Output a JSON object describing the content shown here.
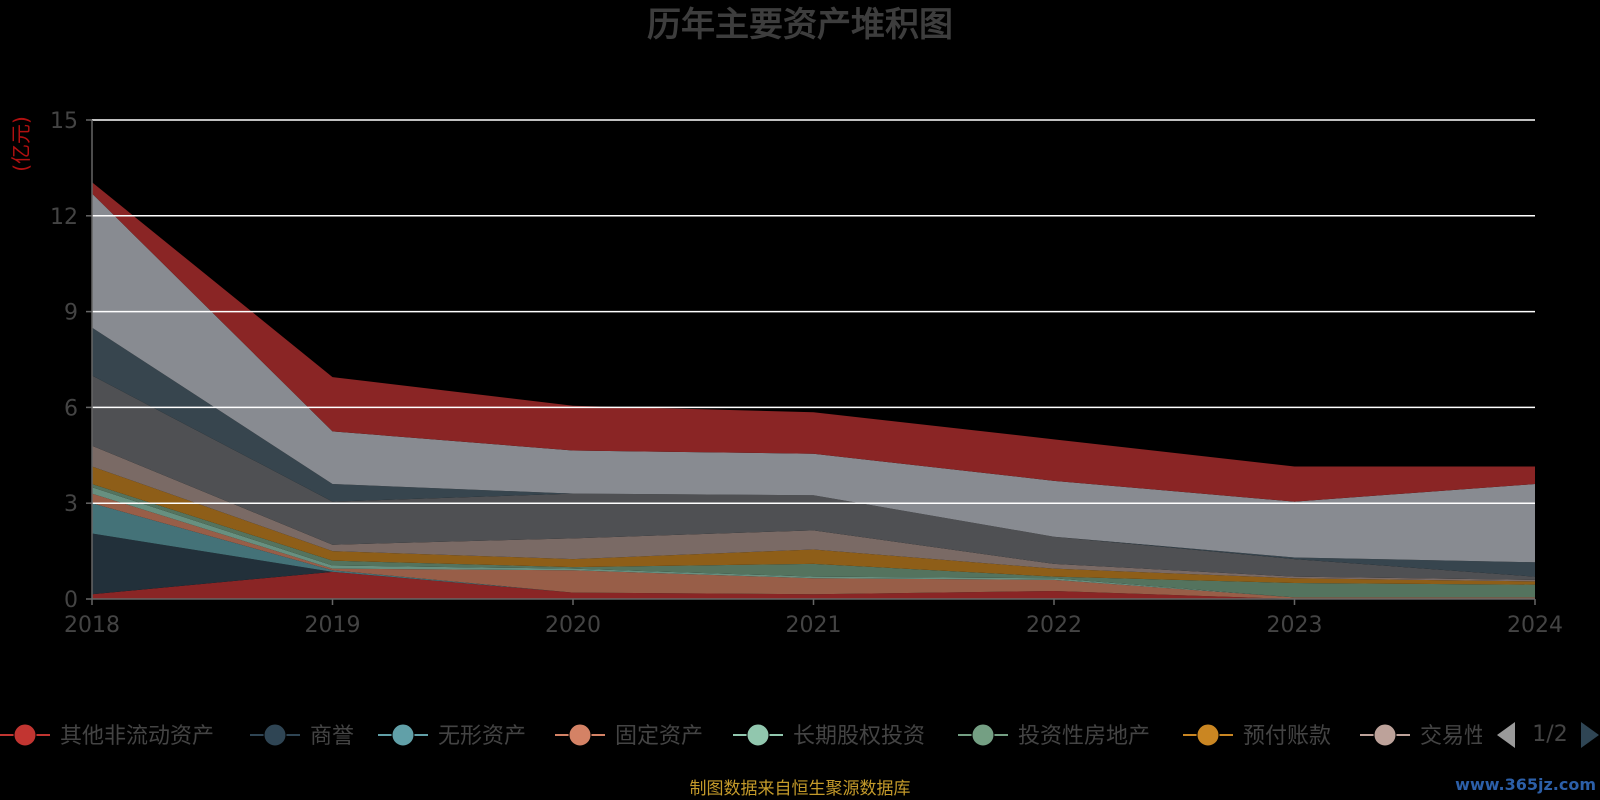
{
  "chart_data": {
    "type": "area",
    "stacked": true,
    "title": "历年主要资产堆积图",
    "unit_label": "(亿元)",
    "x": [
      "2018",
      "2019",
      "2020",
      "2021",
      "2022",
      "2023",
      "2024"
    ],
    "ylim": [
      0,
      15
    ],
    "yticks": [
      0,
      3,
      6,
      9,
      12,
      15
    ],
    "grid": true,
    "series": [
      {
        "name": "其他非流动资产",
        "legend_color": "#c23531",
        "fill": "#8a2525",
        "values": [
          0.15,
          0.85,
          0.2,
          0.15,
          0.25,
          0.0,
          0.0
        ]
      },
      {
        "name": "商誉",
        "legend_color": "#2f4554",
        "fill": "#22303a",
        "values": [
          1.9,
          0.0,
          0.0,
          0.0,
          0.0,
          0.0,
          0.0
        ]
      },
      {
        "name": "无形资产",
        "legend_color": "#61a0a8",
        "fill": "#447278",
        "values": [
          0.95,
          0.05,
          0.0,
          0.0,
          0.0,
          0.0,
          0.0
        ]
      },
      {
        "name": "固定资产",
        "legend_color": "#d48265",
        "fill": "#985e48",
        "values": [
          0.3,
          0.05,
          0.7,
          0.5,
          0.35,
          0.05,
          0.05
        ]
      },
      {
        "name": "长期股权投资",
        "legend_color": "#91c7ae",
        "fill": "#679080",
        "values": [
          0.2,
          0.1,
          0.05,
          0.05,
          0.05,
          0.0,
          0.0
        ]
      },
      {
        "name": "投资性房地产",
        "legend_color": "#749f83",
        "fill": "#54735e",
        "values": [
          0.1,
          0.15,
          0.05,
          0.4,
          0.05,
          0.45,
          0.4
        ]
      },
      {
        "name": "预付账款",
        "legend_color": "#ca8622",
        "fill": "#8e5e18",
        "values": [
          0.55,
          0.3,
          0.25,
          0.45,
          0.25,
          0.15,
          0.1
        ]
      },
      {
        "name": "交易性金融资产",
        "legend_color": "#bda29a",
        "fill": "#7a6a65",
        "values": [
          0.65,
          0.2,
          0.65,
          0.6,
          0.15,
          0.05,
          0.05
        ]
      },
      {
        "name": "",
        "legend_color": "#6e7074",
        "fill": "#4f5053",
        "values": [
          2.2,
          1.35,
          1.4,
          1.1,
          0.85,
          0.55,
          0.1
        ]
      },
      {
        "name": "",
        "legend_color": "#546570",
        "fill": "#37454e",
        "values": [
          1.5,
          0.55,
          0.0,
          0.0,
          0.0,
          0.05,
          0.45
        ]
      },
      {
        "name": "",
        "legend_color": "#c4ccd3",
        "fill": "#888b91",
        "values": [
          4.2,
          1.65,
          1.35,
          1.3,
          1.75,
          1.75,
          2.45
        ]
      },
      {
        "name": "",
        "legend_color": "#c23531",
        "fill": "#8a2525",
        "values": [
          0.35,
          1.7,
          1.4,
          1.3,
          1.3,
          1.1,
          0.55
        ]
      }
    ]
  },
  "legend": {
    "page": "1/2",
    "visible_items": [
      "其他非流动资产",
      "商誉",
      "无形资产",
      "固定资产",
      "长期股权投资",
      "投资性房地产",
      "预付账款",
      "交易性"
    ]
  },
  "footer": "制图数据来自恒生聚源数据库",
  "watermark": "www.365jz.com",
  "colors": {
    "background": "#000000",
    "gridline": "#ffffff",
    "axis": "#666666",
    "unit_label": "#b01010",
    "footer_text": "#c49a2a",
    "pager_arrow": "#2f4554"
  }
}
